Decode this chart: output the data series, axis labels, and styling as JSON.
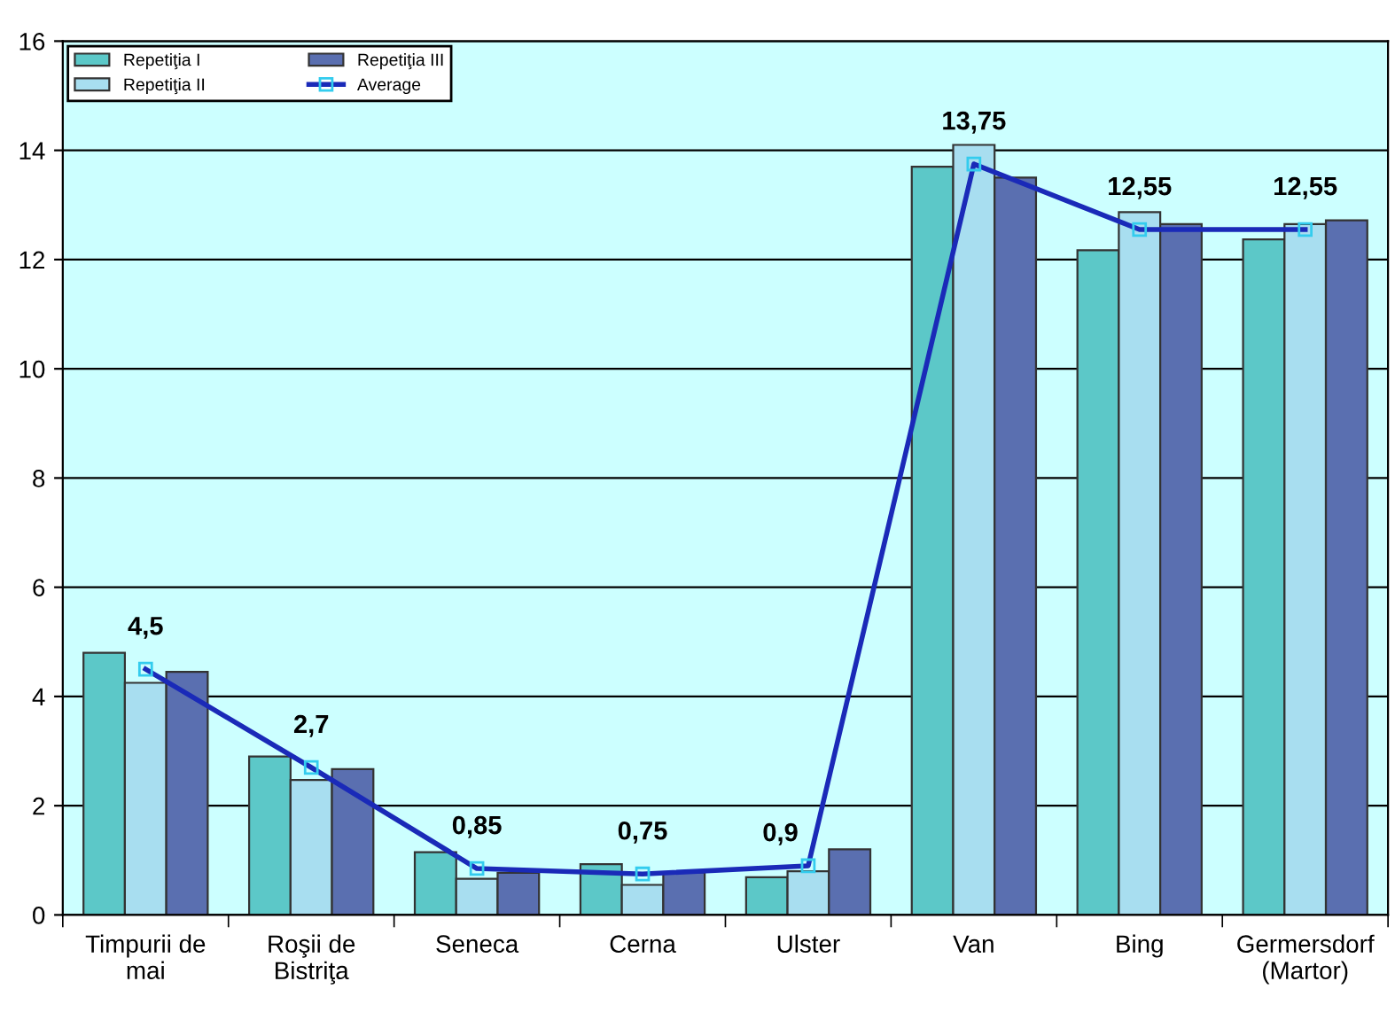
{
  "chart_data": {
    "type": "bar",
    "categories": [
      "Timpurii de\nmai",
      "Roşii de\nBistriţa",
      "Seneca",
      "Cerna",
      "Ulster",
      "Van",
      "Bing",
      "Germersdorf\n(Martor)"
    ],
    "series": [
      {
        "name": "Repetiţia I",
        "color": "#5cc8c8",
        "values": [
          4.8,
          2.9,
          1.15,
          0.93,
          0.69,
          13.7,
          12.17,
          12.37
        ]
      },
      {
        "name": "Repetiţia II",
        "color": "#a8def0",
        "values": [
          4.25,
          2.47,
          0.66,
          0.55,
          0.8,
          14.1,
          12.87,
          12.65
        ]
      },
      {
        "name": "Repetiţia III",
        "color": "#5a6fb0",
        "values": [
          4.45,
          2.67,
          0.77,
          0.78,
          1.2,
          13.5,
          12.65,
          12.72
        ]
      },
      {
        "name": "Average",
        "type": "line",
        "color": "#1a2ab8",
        "marker": "square",
        "values": [
          4.5,
          2.7,
          0.85,
          0.75,
          0.9,
          13.75,
          12.55,
          12.55
        ],
        "value_labels": [
          "4,5",
          "2,7",
          "0,85",
          "0,75",
          "0,9",
          "13,75",
          "12,55",
          "12,55"
        ]
      }
    ],
    "ylim": [
      0,
      16
    ],
    "yticks": [
      0,
      2,
      4,
      6,
      8,
      10,
      12,
      14,
      16
    ],
    "grid": "y",
    "legend": "top left"
  }
}
